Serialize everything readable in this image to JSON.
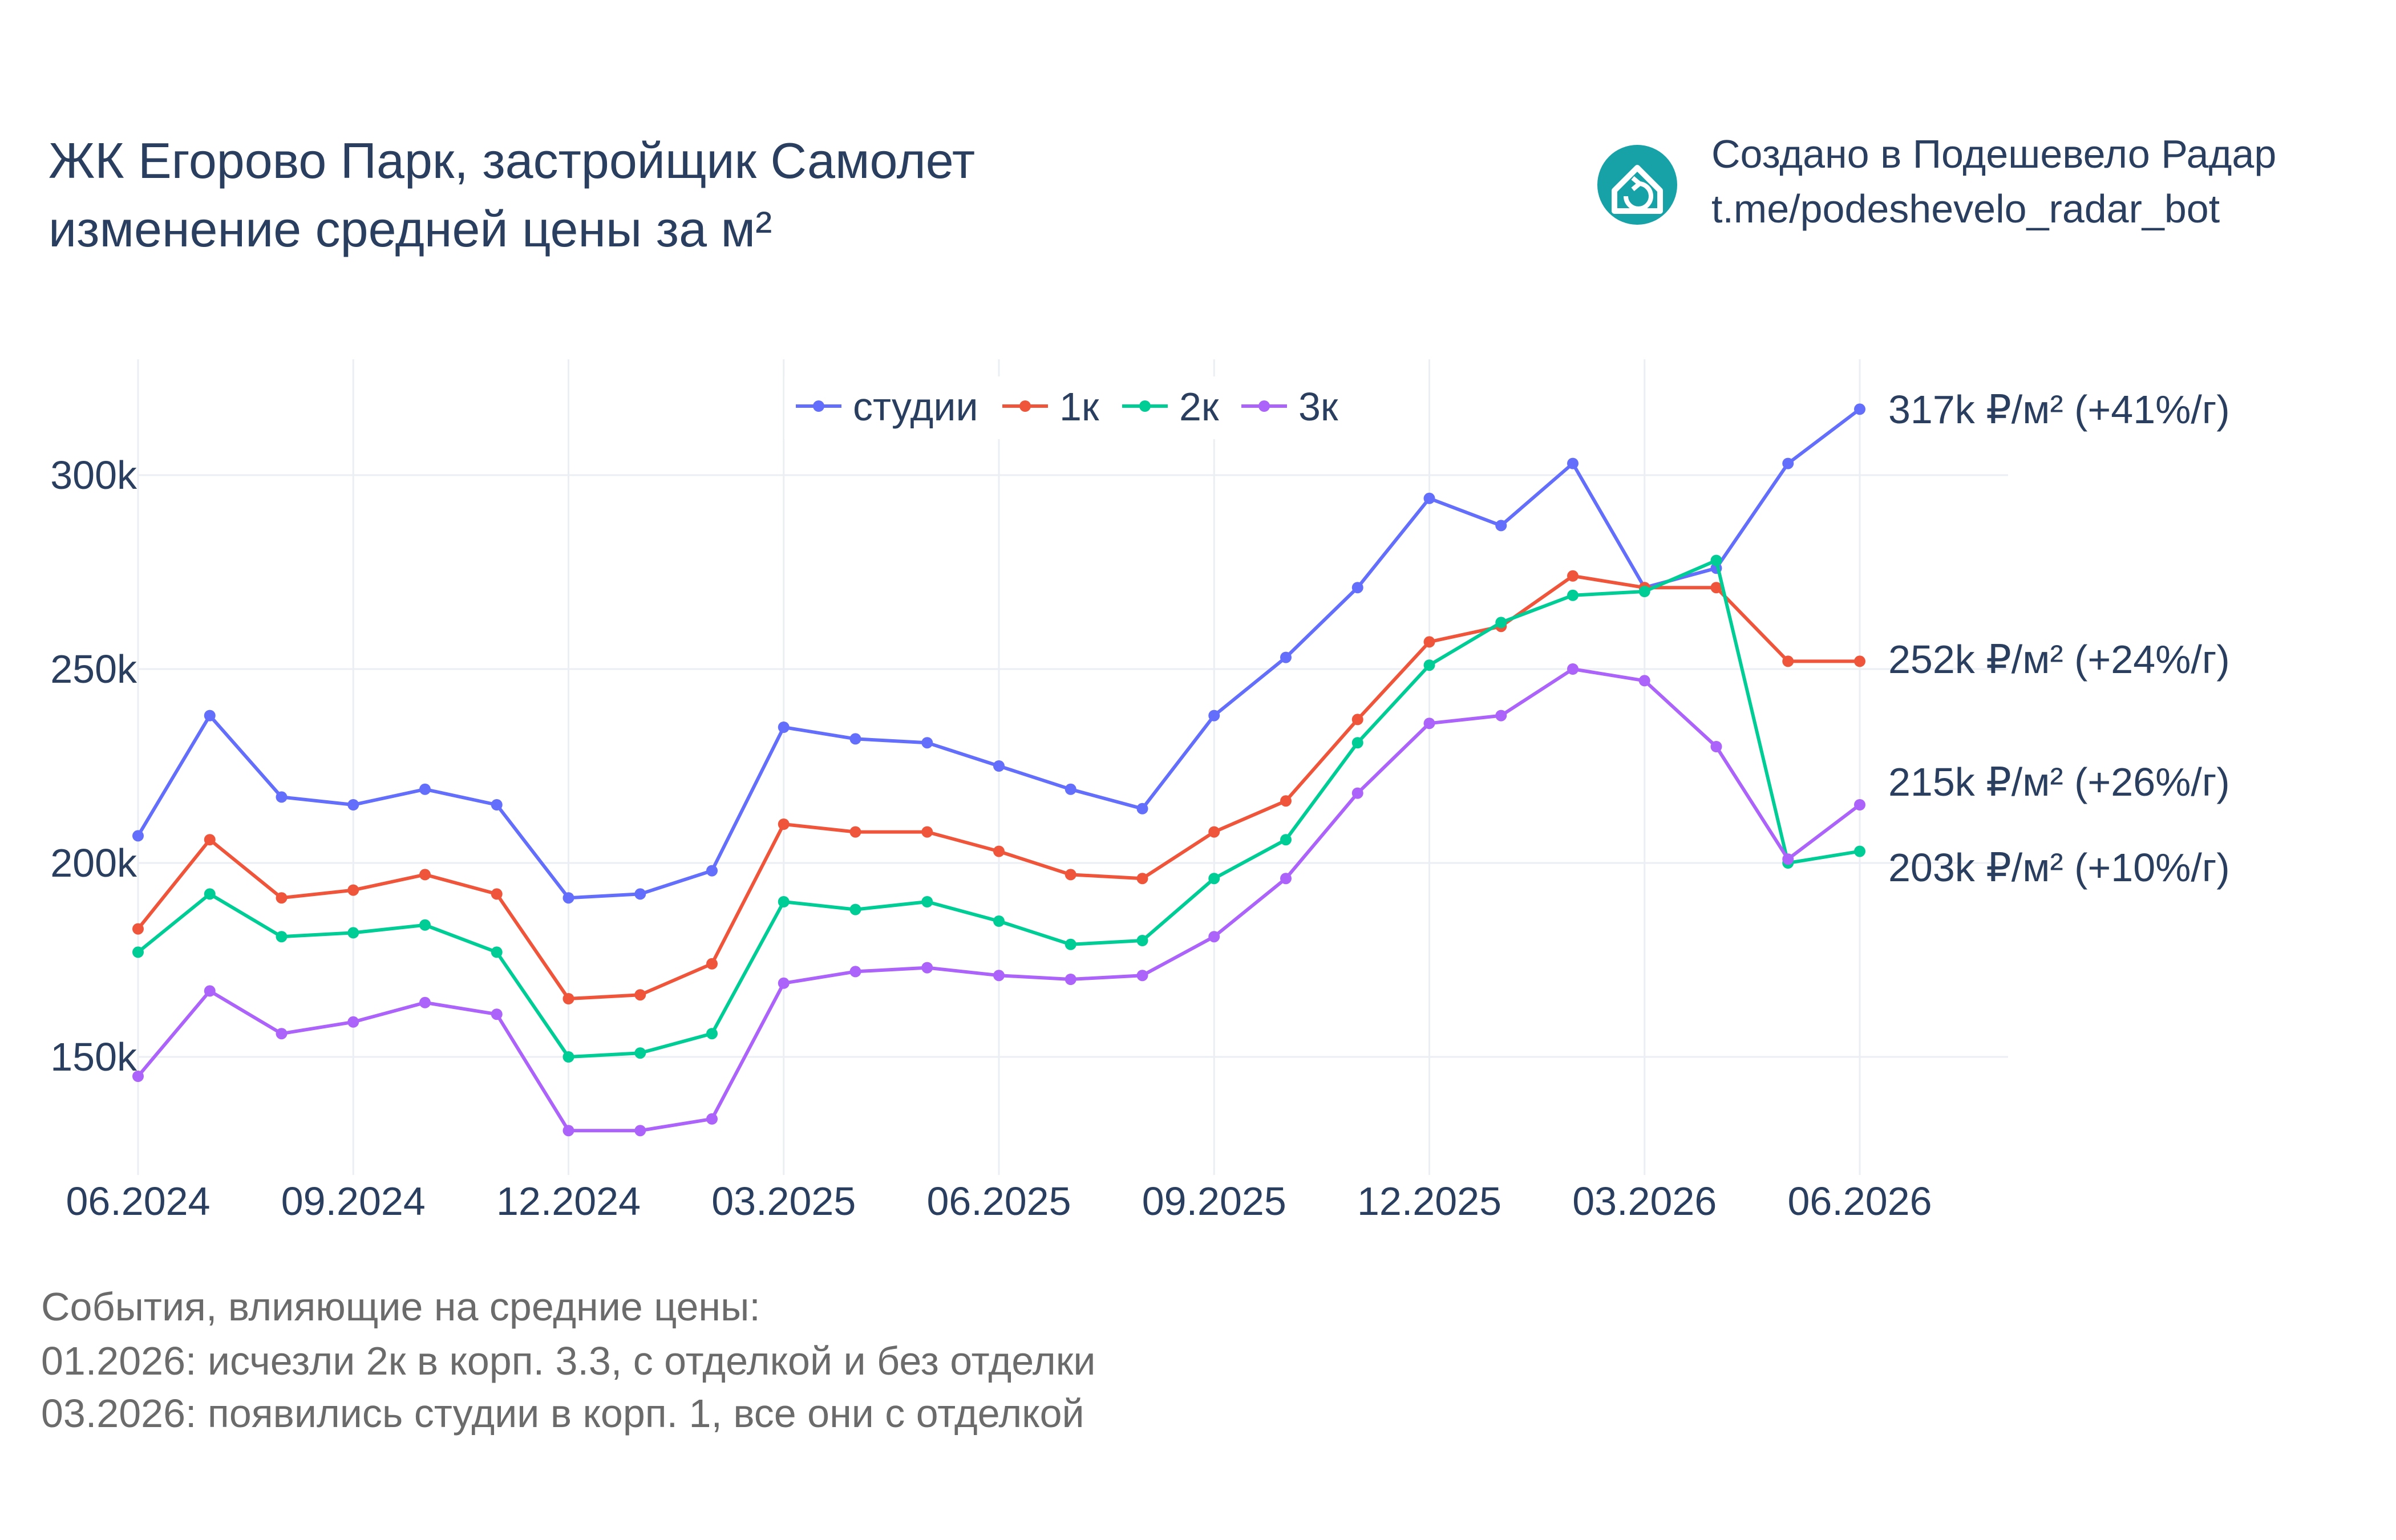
{
  "chart_data": {
    "type": "line",
    "title_lines": [
      "ЖК Егорово Парк, застройщик Самолет",
      "изменение средней цены за м²"
    ],
    "credit": {
      "lines": [
        "Создано в Подешевело Радар",
        "t.me/podeshevelo_radar_bot"
      ],
      "icon": "house-refresh-icon",
      "icon_color": "#16a2a6"
    },
    "x": [
      "06.2024",
      "07.2024",
      "08.2024",
      "09.2024",
      "10.2024",
      "11.2024",
      "12.2024",
      "01.2025",
      "02.2025",
      "03.2025",
      "04.2025",
      "05.2025",
      "06.2025",
      "07.2025",
      "08.2025",
      "09.2025",
      "10.2025",
      "11.2025",
      "12.2025",
      "01.2026",
      "02.2026",
      "03.2026",
      "04.2026",
      "05.2026",
      "06.2026"
    ],
    "x_tick_labels": [
      "06.2024",
      "09.2024",
      "12.2024",
      "03.2025",
      "06.2025",
      "09.2025",
      "12.2025",
      "03.2026",
      "06.2026"
    ],
    "y_ticks": [
      150000,
      200000,
      250000,
      300000
    ],
    "y_tick_labels": [
      "150k",
      "200k",
      "250k",
      "300k"
    ],
    "ylim": [
      120000,
      330000
    ],
    "grid": true,
    "legend_position": "top-center",
    "series": [
      {
        "name": "студии",
        "color": "#636efa",
        "values": [
          207000,
          238000,
          217000,
          215000,
          219000,
          215000,
          191000,
          192000,
          198000,
          235000,
          232000,
          231000,
          225000,
          219000,
          214000,
          238000,
          253000,
          271000,
          294000,
          287000,
          303000,
          271000,
          276000,
          303000,
          317000
        ],
        "end_label": "317k ₽/м² (+41%/г)"
      },
      {
        "name": "1к",
        "color": "#ef553b",
        "values": [
          183000,
          206000,
          191000,
          193000,
          197000,
          192000,
          165000,
          166000,
          174000,
          210000,
          208000,
          208000,
          203000,
          197000,
          196000,
          208000,
          216000,
          237000,
          257000,
          261000,
          274000,
          271000,
          271000,
          252000,
          252000
        ],
        "end_label": "252k ₽/м² (+24%/г)"
      },
      {
        "name": "2к",
        "color": "#00cc96",
        "values": [
          177000,
          192000,
          181000,
          182000,
          184000,
          177000,
          150000,
          151000,
          156000,
          190000,
          188000,
          190000,
          185000,
          179000,
          180000,
          196000,
          206000,
          231000,
          251000,
          262000,
          269000,
          270000,
          278000,
          200000,
          203000
        ],
        "end_label": "203k ₽/м² (+10%/г)"
      },
      {
        "name": "3к",
        "color": "#ab63fa",
        "values": [
          145000,
          167000,
          156000,
          159000,
          164000,
          161000,
          131000,
          131000,
          134000,
          169000,
          172000,
          173000,
          171000,
          170000,
          171000,
          181000,
          196000,
          218000,
          236000,
          238000,
          250000,
          247000,
          230000,
          201000,
          215000
        ],
        "end_label": "215k ₽/м² (+26%/г)"
      }
    ],
    "events": {
      "heading": "События, влияющие на средние цены:",
      "lines": [
        "01.2026: исчезли 2к в корп. 3.3, с отделкой и без отделки",
        "03.2026: появились студии в корп. 1, все они с отделкой"
      ]
    }
  }
}
